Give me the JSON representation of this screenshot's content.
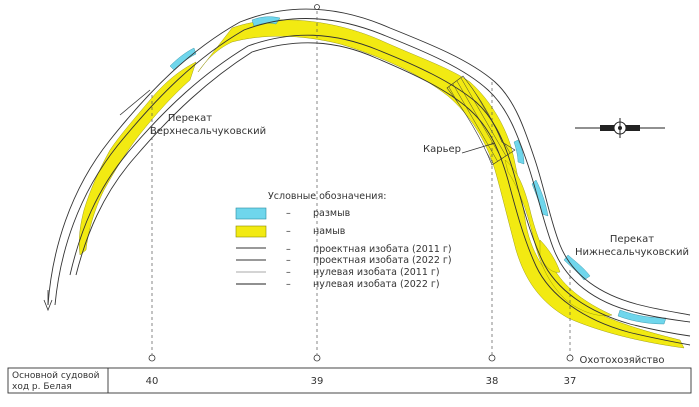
{
  "labels": {
    "rift_upper": [
      "Перекат",
      "Верхнесальчуковский"
    ],
    "rift_lower": [
      "Перекат",
      "Нижнесальчуковский"
    ],
    "quarry": "Карьер",
    "settlement": "Охотохозяйство"
  },
  "legend": {
    "title": "Условные обозначения:",
    "items": [
      {
        "dash": "–",
        "label": "размыв",
        "swatch": "#6fd6ec"
      },
      {
        "dash": "–",
        "label": "намыв",
        "swatch": "#f2ea12"
      },
      {
        "dash": "–",
        "label": "проектная изобата (2011 г)"
      },
      {
        "dash": "–",
        "label": "проектная изобата (2022 г)"
      },
      {
        "dash": "–",
        "label": "нулевая изобата (2011 г)"
      },
      {
        "dash": "–",
        "label": "нулевая изобата (2022 г)"
      }
    ]
  },
  "table": {
    "row_label": [
      "Основной судовой",
      "ход р. Белая"
    ],
    "km_marks": [
      "40",
      "39",
      "38",
      "37"
    ]
  },
  "colors": {
    "erosion": "#6fd6ec",
    "deposition": "#f2ea12",
    "line": "#333333"
  }
}
